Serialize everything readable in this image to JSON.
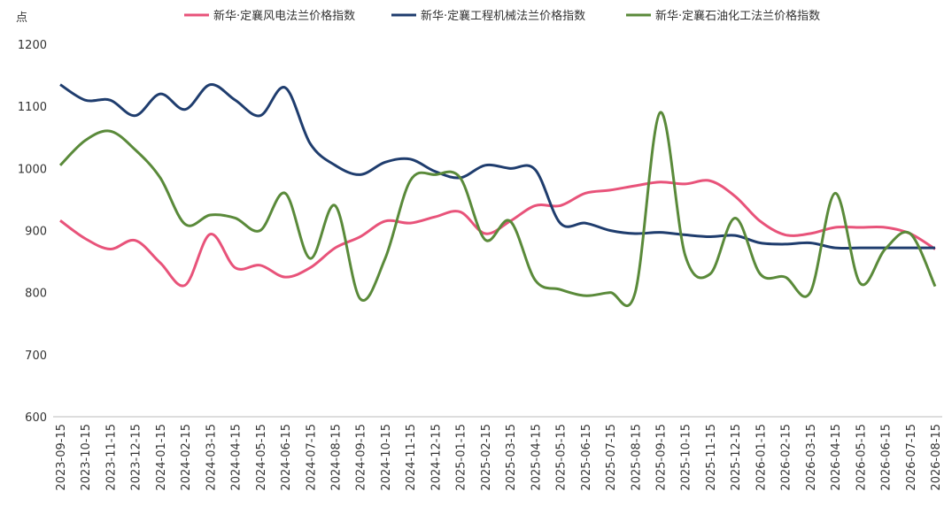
{
  "chart_data": {
    "type": "line",
    "y_label": "点",
    "categories": [
      "2023-09-15",
      "2023-10-15",
      "2023-11-15",
      "2023-12-15",
      "2024-01-15",
      "2024-02-15",
      "2024-03-15",
      "2024-04-15",
      "2024-05-15",
      "2024-06-15",
      "2024-07-15",
      "2024-08-15",
      "2024-09-15",
      "2024-10-15",
      "2024-11-15",
      "2024-12-15",
      "2025-01-15",
      "2025-02-15",
      "2025-03-15",
      "2025-04-15",
      "2025-05-15",
      "2025-06-15",
      "2025-07-15",
      "2025-08-15",
      "2025-09-15",
      "2025-10-15",
      "2025-11-15",
      "2025-12-15",
      "2026-01-15",
      "2026-02-15",
      "2026-03-15",
      "2026-04-15",
      "2026-05-15",
      "2026-06-15",
      "2026-07-15",
      "2026-08-15"
    ],
    "series": [
      {
        "name": "新华·定襄风电法兰价格指数",
        "color": "#e8537a",
        "values": [
          916,
          887,
          870,
          884,
          848,
          812,
          894,
          840,
          844,
          825,
          840,
          872,
          890,
          915,
          912,
          922,
          930,
          895,
          915,
          940,
          940,
          960,
          965,
          972,
          978,
          975,
          980,
          955,
          915,
          893,
          895,
          905,
          905,
          905,
          895,
          870
        ]
      },
      {
        "name": "新华·定襄工程机械法兰价格指数",
        "color": "#1f3d6e",
        "values": [
          1135,
          1110,
          1110,
          1085,
          1120,
          1095,
          1135,
          1110,
          1085,
          1130,
          1040,
          1005,
          990,
          1010,
          1015,
          995,
          985,
          1005,
          1000,
          998,
          912,
          912,
          900,
          895,
          897,
          893,
          890,
          892,
          880,
          878,
          880,
          872,
          872,
          872,
          872,
          872
        ]
      },
      {
        "name": "新华·定襄石油化工法兰价格指数",
        "color": "#5a8a3a",
        "values": [
          1005,
          1045,
          1060,
          1030,
          985,
          910,
          925,
          920,
          900,
          960,
          855,
          940,
          790,
          855,
          980,
          990,
          985,
          885,
          915,
          820,
          805,
          795,
          800,
          800,
          1090,
          860,
          830,
          920,
          830,
          825,
          800,
          960,
          815,
          870,
          895,
          810
        ]
      }
    ],
    "ylim": [
      600,
      1200
    ],
    "yticks": [
      600,
      700,
      800,
      900,
      1000,
      1100,
      1200
    ],
    "legend": "top"
  }
}
